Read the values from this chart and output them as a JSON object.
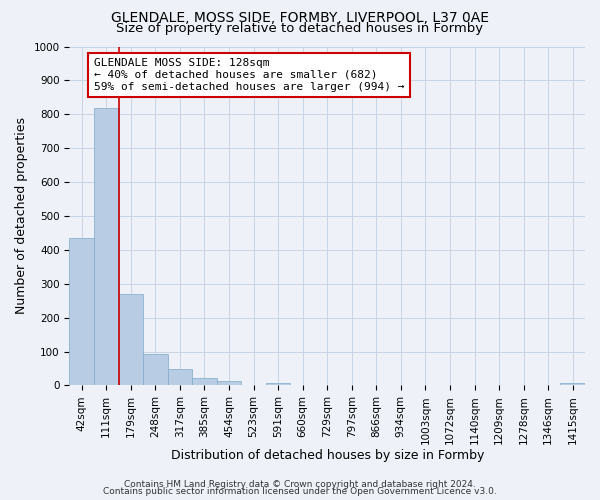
{
  "title": "GLENDALE, MOSS SIDE, FORMBY, LIVERPOOL, L37 0AE",
  "subtitle": "Size of property relative to detached houses in Formby",
  "xlabel": "Distribution of detached houses by size in Formby",
  "ylabel": "Number of detached properties",
  "bar_labels": [
    "42sqm",
    "111sqm",
    "179sqm",
    "248sqm",
    "317sqm",
    "385sqm",
    "454sqm",
    "523sqm",
    "591sqm",
    "660sqm",
    "729sqm",
    "797sqm",
    "866sqm",
    "934sqm",
    "1003sqm",
    "1072sqm",
    "1140sqm",
    "1209sqm",
    "1278sqm",
    "1346sqm",
    "1415sqm"
  ],
  "bar_values": [
    435,
    820,
    270,
    93,
    48,
    22,
    14,
    0,
    6,
    0,
    0,
    0,
    0,
    0,
    0,
    0,
    0,
    0,
    0,
    0,
    7
  ],
  "bar_color": "#b8cce4",
  "bar_edge_color": "#7faac8",
  "grid_color": "#c8d4e4",
  "background_color": "#eef2f8",
  "vline_color": "#cc0000",
  "annotation_title": "GLENDALE MOSS SIDE: 128sqm",
  "annotation_line1": "← 40% of detached houses are smaller (682)",
  "annotation_line2": "59% of semi-detached houses are larger (994) →",
  "annotation_box_facecolor": "#ffffff",
  "annotation_box_edgecolor": "#cc0000",
  "ylim": [
    0,
    1000
  ],
  "yticks": [
    0,
    100,
    200,
    300,
    400,
    500,
    600,
    700,
    800,
    900,
    1000
  ],
  "footer1": "Contains HM Land Registry data © Crown copyright and database right 2024.",
  "footer2": "Contains public sector information licensed under the Open Government Licence v3.0.",
  "title_fontsize": 10,
  "subtitle_fontsize": 9.5,
  "annotation_fontsize": 8,
  "axis_label_fontsize": 9,
  "tick_label_fontsize": 7.5,
  "footer_fontsize": 6.5
}
